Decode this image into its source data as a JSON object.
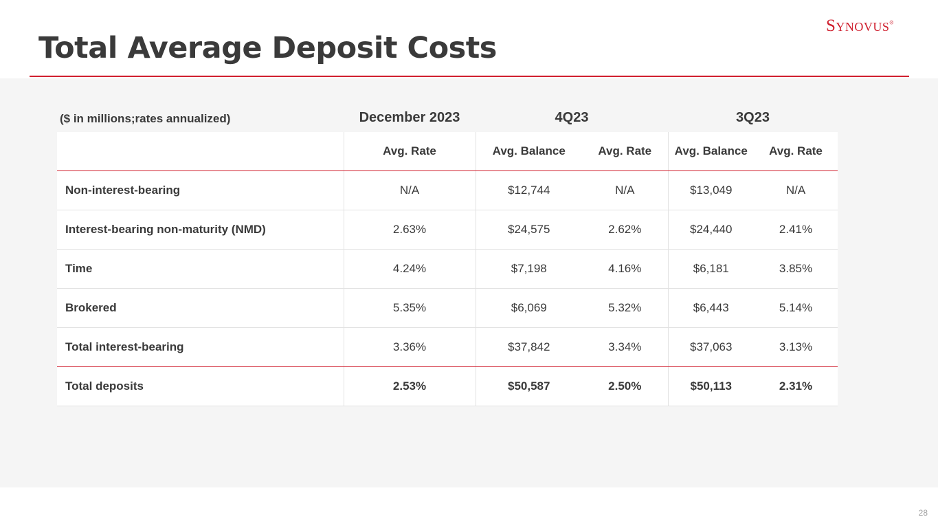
{
  "header": {
    "title": "Total Average Deposit Costs",
    "logo_text": "Synovus",
    "logo_mark": "®"
  },
  "table": {
    "units_note": "($ in millions;rates annualized)",
    "periods": [
      "December 2023",
      "4Q23",
      "3Q23"
    ],
    "columns": [
      "Avg. Rate",
      "Avg. Balance",
      "Avg. Rate",
      "Avg. Balance",
      "Avg. Rate"
    ],
    "rows": [
      {
        "label": "Non-interest-bearing",
        "values": [
          "N/A",
          "$12,744",
          "N/A",
          "$13,049",
          "N/A"
        ]
      },
      {
        "label": "Interest-bearing non-maturity (NMD)",
        "values": [
          "2.63%",
          "$24,575",
          "2.62%",
          "$24,440",
          "2.41%"
        ]
      },
      {
        "label": "Time",
        "values": [
          "4.24%",
          "$7,198",
          "4.16%",
          "$6,181",
          "3.85%"
        ]
      },
      {
        "label": "Brokered",
        "values": [
          "5.35%",
          "$6,069",
          "5.32%",
          "$6,443",
          "5.14%"
        ]
      },
      {
        "label": "Total interest-bearing",
        "values": [
          "3.36%",
          "$37,842",
          "3.34%",
          "$37,063",
          "3.13%"
        ]
      },
      {
        "label": "Total deposits",
        "values": [
          "2.53%",
          "$50,587",
          "2.50%",
          "$50,113",
          "2.31%"
        ]
      }
    ]
  },
  "footer": {
    "page_number": "28"
  },
  "colors": {
    "accent": "#d0202f",
    "text": "#3a3a3a",
    "band": "#f5f5f5"
  }
}
